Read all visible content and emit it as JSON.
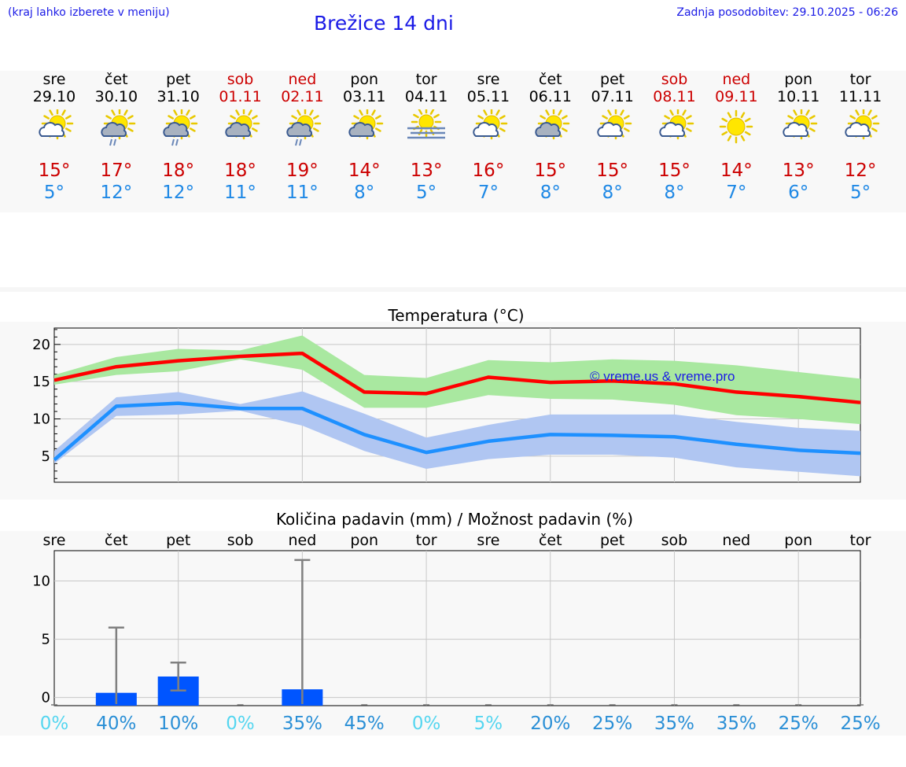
{
  "header": {
    "hint": "(kraj lahko izberete v meniju)",
    "title": "Brežice 14 dni",
    "updated": "Zadnja posodobitev: 29.10.2025 - 06:26"
  },
  "colors": {
    "link": "#1a1ae6",
    "weekend": "#cc0000",
    "max_line": "#ff0000",
    "max_band": "#a9e8a0",
    "min_line": "#1e90ff",
    "min_band": "#b0c6f2",
    "bar": "#0055ff",
    "errorbar": "#808080"
  },
  "days": [
    {
      "name": "sre",
      "date": "29.10",
      "weekend": false,
      "icon": "sun-cloud-icon",
      "tmax": "15°",
      "tmin": "5°"
    },
    {
      "name": "čet",
      "date": "30.10",
      "weekend": false,
      "icon": "sun-cloud-rain-icon",
      "tmax": "17°",
      "tmin": "12°"
    },
    {
      "name": "pet",
      "date": "31.10",
      "weekend": false,
      "icon": "sun-cloud-rain-icon",
      "tmax": "18°",
      "tmin": "12°"
    },
    {
      "name": "sob",
      "date": "01.11",
      "weekend": true,
      "icon": "sun-gray-cloud-icon",
      "tmax": "18°",
      "tmin": "11°"
    },
    {
      "name": "ned",
      "date": "02.11",
      "weekend": true,
      "icon": "sun-cloud-rain-icon",
      "tmax": "19°",
      "tmin": "11°"
    },
    {
      "name": "pon",
      "date": "03.11",
      "weekend": false,
      "icon": "sun-gray-cloud-icon",
      "tmax": "14°",
      "tmin": "8°"
    },
    {
      "name": "tor",
      "date": "04.11",
      "weekend": false,
      "icon": "sun-fog-icon",
      "tmax": "13°",
      "tmin": "5°"
    },
    {
      "name": "sre",
      "date": "05.11",
      "weekend": false,
      "icon": "sun-cloud-icon",
      "tmax": "16°",
      "tmin": "7°"
    },
    {
      "name": "čet",
      "date": "06.11",
      "weekend": false,
      "icon": "sun-gray-cloud-icon",
      "tmax": "15°",
      "tmin": "8°"
    },
    {
      "name": "pet",
      "date": "07.11",
      "weekend": false,
      "icon": "sun-cloud-icon",
      "tmax": "15°",
      "tmin": "8°"
    },
    {
      "name": "sob",
      "date": "08.11",
      "weekend": true,
      "icon": "sun-cloud-icon",
      "tmax": "15°",
      "tmin": "8°"
    },
    {
      "name": "ned",
      "date": "09.11",
      "weekend": true,
      "icon": "sun-icon",
      "tmax": "14°",
      "tmin": "7°"
    },
    {
      "name": "pon",
      "date": "10.11",
      "weekend": false,
      "icon": "sun-cloud-icon",
      "tmax": "13°",
      "tmin": "6°"
    },
    {
      "name": "tor",
      "date": "11.11",
      "weekend": false,
      "icon": "sun-cloud-icon",
      "tmax": "12°",
      "tmin": "5°"
    }
  ],
  "chart_data": [
    {
      "type": "line",
      "title": "Temperatura (°C)",
      "xlabel": "",
      "ylabel": "",
      "ylim": [
        1.5,
        22.2
      ],
      "yticks": [
        "5",
        "10",
        "15",
        "20"
      ],
      "credit": "© vreme.us & vreme.pro",
      "grid": true,
      "series": [
        {
          "name": "max",
          "values": [
            15.2,
            17.0,
            17.8,
            18.4,
            18.8,
            13.6,
            13.4,
            15.6,
            14.9,
            15.1,
            14.7,
            13.6,
            13.0,
            12.2
          ],
          "band_high": [
            15.9,
            18.3,
            19.4,
            19.2,
            21.2,
            15.9,
            15.5,
            17.9,
            17.6,
            18.0,
            17.8,
            17.2,
            16.3,
            15.4
          ],
          "band_low": [
            14.6,
            15.9,
            16.4,
            18.0,
            16.6,
            11.5,
            11.5,
            13.2,
            12.7,
            12.6,
            11.9,
            10.5,
            10.0,
            9.3
          ]
        },
        {
          "name": "min",
          "values": [
            4.5,
            11.7,
            12.1,
            11.4,
            11.4,
            7.9,
            5.5,
            7.0,
            7.9,
            7.8,
            7.6,
            6.6,
            5.8,
            5.4
          ],
          "band_high": [
            5.7,
            12.9,
            13.6,
            12.0,
            13.7,
            10.7,
            7.5,
            9.2,
            10.6,
            10.6,
            10.6,
            9.6,
            8.8,
            8.4
          ],
          "band_low": [
            4.0,
            10.4,
            10.6,
            11.1,
            9.1,
            5.7,
            3.3,
            4.6,
            5.2,
            5.2,
            4.8,
            3.5,
            2.9,
            2.3
          ]
        }
      ]
    },
    {
      "type": "bar",
      "title": "Količina padavin (mm) / Možnost padavin (%)",
      "categories": [
        "sre",
        "čet",
        "pet",
        "sob",
        "ned",
        "pon",
        "tor",
        "sre",
        "čet",
        "pet",
        "sob",
        "ned",
        "pon",
        "tor"
      ],
      "values": [
        0,
        0.4,
        1.8,
        0,
        0.7,
        0,
        0,
        0,
        0,
        0,
        0,
        0,
        0,
        0
      ],
      "err_low": [
        0,
        0,
        0.6,
        0,
        0,
        0,
        0,
        0,
        0,
        0,
        0,
        0,
        0,
        0
      ],
      "err_high": [
        0,
        6.0,
        3.0,
        0,
        11.8,
        0,
        0,
        0,
        0,
        0,
        0,
        0,
        0,
        0
      ],
      "chance": [
        "0%",
        "40%",
        "10%",
        "0%",
        "35%",
        "45%",
        "0%",
        "5%",
        "20%",
        "25%",
        "35%",
        "35%",
        "25%",
        "25%"
      ],
      "chance_values": [
        0,
        40,
        10,
        0,
        35,
        45,
        0,
        5,
        20,
        25,
        35,
        35,
        25,
        25
      ],
      "ylim": [
        -0.7,
        12.6
      ],
      "yticks": [
        "0",
        "5",
        "10"
      ],
      "xlabel": "",
      "ylabel": ""
    }
  ]
}
